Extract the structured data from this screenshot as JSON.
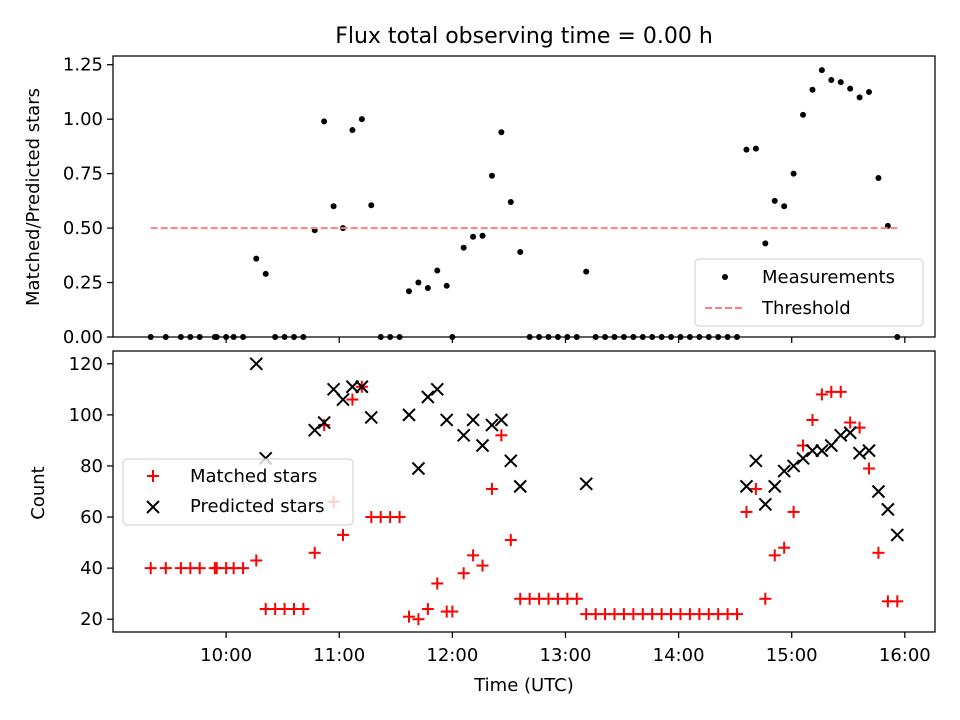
{
  "figure": {
    "title": "Flux total observing time = 0.00 h",
    "xlabel": "Time (UTC)"
  },
  "chart_data": [
    {
      "type": "scatter",
      "ylabel": "Matched/Predicted stars",
      "ylim": [
        0,
        1.29
      ],
      "yticks": [
        0.0,
        0.25,
        0.5,
        0.75,
        1.0,
        1.25
      ],
      "ytick_labels": [
        "0.00",
        "0.25",
        "0.50",
        "0.75",
        "1.00",
        "1.25"
      ],
      "xlim": [
        "09:00",
        "16:16"
      ],
      "xticks": [
        "10:00",
        "11:00",
        "12:00",
        "13:00",
        "14:00",
        "15:00",
        "16:00"
      ],
      "grid": false,
      "legend": {
        "placement": "lower right",
        "entries": [
          "Measurements",
          "Threshold"
        ]
      },
      "series": [
        {
          "name": "Measurements",
          "marker": "dot",
          "color": "#000000",
          "points": [
            [
              "09:20",
              0
            ],
            [
              "09:28",
              0
            ],
            [
              "09:36",
              0
            ],
            [
              "09:41",
              0
            ],
            [
              "09:46",
              0
            ],
            [
              "09:54",
              0
            ],
            [
              "09:55",
              0
            ],
            [
              "10:00",
              0
            ],
            [
              "10:04",
              0
            ],
            [
              "10:09",
              0
            ],
            [
              "10:16",
              0.36
            ],
            [
              "10:21",
              0.29
            ],
            [
              "10:26",
              0
            ],
            [
              "10:31",
              0
            ],
            [
              "10:36",
              0
            ],
            [
              "10:41",
              0
            ],
            [
              "10:47",
              0.49
            ],
            [
              "10:52",
              0.99
            ],
            [
              "10:57",
              0.6
            ],
            [
              "11:02",
              0.5
            ],
            [
              "11:07",
              0.95
            ],
            [
              "11:12",
              1.0
            ],
            [
              "11:17",
              0.605
            ],
            [
              "11:22",
              0
            ],
            [
              "11:27",
              0
            ],
            [
              "11:32",
              0
            ],
            [
              "11:37",
              0.21
            ],
            [
              "11:42",
              0.25
            ],
            [
              "11:47",
              0.225
            ],
            [
              "11:52",
              0.305
            ],
            [
              "11:57",
              0.235
            ],
            [
              "12:00",
              0
            ],
            [
              "12:06",
              0.41
            ],
            [
              "12:11",
              0.46
            ],
            [
              "12:16",
              0.465
            ],
            [
              "12:21",
              0.74
            ],
            [
              "12:26",
              0.94
            ],
            [
              "12:31",
              0.62
            ],
            [
              "12:36",
              0.39
            ],
            [
              "12:41",
              0
            ],
            [
              "12:46",
              0
            ],
            [
              "12:51",
              0
            ],
            [
              "12:56",
              0
            ],
            [
              "13:01",
              0
            ],
            [
              "13:06",
              0
            ],
            [
              "13:11",
              0.3
            ],
            [
              "13:16",
              0
            ],
            [
              "13:21",
              0
            ],
            [
              "13:26",
              0
            ],
            [
              "13:31",
              0
            ],
            [
              "13:36",
              0
            ],
            [
              "13:41",
              0
            ],
            [
              "13:46",
              0
            ],
            [
              "13:51",
              0
            ],
            [
              "13:56",
              0
            ],
            [
              "14:01",
              0
            ],
            [
              "14:06",
              0
            ],
            [
              "14:11",
              0
            ],
            [
              "14:16",
              0
            ],
            [
              "14:21",
              0
            ],
            [
              "14:26",
              0
            ],
            [
              "14:31",
              0
            ],
            [
              "14:36",
              0.86
            ],
            [
              "14:41",
              0.865
            ],
            [
              "14:46",
              0.43
            ],
            [
              "14:51",
              0.625
            ],
            [
              "14:56",
              0.6
            ],
            [
              "15:01",
              0.75
            ],
            [
              "15:06",
              1.02
            ],
            [
              "15:11",
              1.135
            ],
            [
              "15:16",
              1.225
            ],
            [
              "15:21",
              1.18
            ],
            [
              "15:26",
              1.17
            ],
            [
              "15:31",
              1.14
            ],
            [
              "15:36",
              1.1
            ],
            [
              "15:41",
              1.125
            ],
            [
              "15:46",
              0.73
            ],
            [
              "15:51",
              0.51
            ],
            [
              "15:56",
              0
            ]
          ]
        },
        {
          "name": "Threshold",
          "marker": "dashed-line",
          "color": "#ff7f7f",
          "points": [
            [
              "09:20",
              0.5
            ],
            [
              "15:56",
              0.5
            ]
          ]
        }
      ]
    },
    {
      "type": "scatter",
      "ylabel": "Count",
      "ylim": [
        15,
        125
      ],
      "yticks": [
        20,
        40,
        60,
        80,
        100,
        120
      ],
      "ytick_labels": [
        "20",
        "40",
        "60",
        "80",
        "100",
        "120"
      ],
      "xlim": [
        "09:00",
        "16:16"
      ],
      "xticks": [
        "10:00",
        "11:00",
        "12:00",
        "13:00",
        "14:00",
        "15:00",
        "16:00"
      ],
      "xtick_labels": [
        "10:00",
        "11:00",
        "12:00",
        "13:00",
        "14:00",
        "15:00",
        "16:00"
      ],
      "grid": false,
      "legend": {
        "placement": "center left",
        "entries": [
          "Matched stars",
          "Predicted stars"
        ]
      },
      "series": [
        {
          "name": "Matched stars",
          "marker": "plus",
          "color": "#ff0000",
          "points": [
            [
              "09:20",
              40
            ],
            [
              "09:28",
              40
            ],
            [
              "09:36",
              40
            ],
            [
              "09:41",
              40
            ],
            [
              "09:46",
              40
            ],
            [
              "09:54",
              40
            ],
            [
              "09:55",
              40
            ],
            [
              "10:00",
              40
            ],
            [
              "10:04",
              40
            ],
            [
              "10:09",
              40
            ],
            [
              "10:16",
              43
            ],
            [
              "10:21",
              24
            ],
            [
              "10:26",
              24
            ],
            [
              "10:31",
              24
            ],
            [
              "10:36",
              24
            ],
            [
              "10:41",
              24
            ],
            [
              "10:47",
              46
            ],
            [
              "10:52",
              96
            ],
            [
              "10:57",
              66
            ],
            [
              "11:02",
              53
            ],
            [
              "11:07",
              106
            ],
            [
              "11:12",
              111
            ],
            [
              "11:17",
              60
            ],
            [
              "11:22",
              60
            ],
            [
              "11:27",
              60
            ],
            [
              "11:32",
              60
            ],
            [
              "11:37",
              21
            ],
            [
              "11:42",
              20
            ],
            [
              "11:47",
              24
            ],
            [
              "11:52",
              34
            ],
            [
              "11:57",
              23
            ],
            [
              "12:00",
              23
            ],
            [
              "12:06",
              38
            ],
            [
              "12:11",
              45
            ],
            [
              "12:16",
              41
            ],
            [
              "12:21",
              71
            ],
            [
              "12:26",
              92
            ],
            [
              "12:31",
              51
            ],
            [
              "12:36",
              28
            ],
            [
              "12:41",
              28
            ],
            [
              "12:46",
              28
            ],
            [
              "12:51",
              28
            ],
            [
              "12:56",
              28
            ],
            [
              "13:01",
              28
            ],
            [
              "13:06",
              28
            ],
            [
              "13:11",
              22
            ],
            [
              "13:16",
              22
            ],
            [
              "13:21",
              22
            ],
            [
              "13:26",
              22
            ],
            [
              "13:31",
              22
            ],
            [
              "13:36",
              22
            ],
            [
              "13:41",
              22
            ],
            [
              "13:46",
              22
            ],
            [
              "13:51",
              22
            ],
            [
              "13:56",
              22
            ],
            [
              "14:01",
              22
            ],
            [
              "14:06",
              22
            ],
            [
              "14:11",
              22
            ],
            [
              "14:16",
              22
            ],
            [
              "14:21",
              22
            ],
            [
              "14:26",
              22
            ],
            [
              "14:31",
              22
            ],
            [
              "14:36",
              62
            ],
            [
              "14:41",
              71
            ],
            [
              "14:46",
              28
            ],
            [
              "14:51",
              45
            ],
            [
              "14:56",
              48
            ],
            [
              "15:01",
              62
            ],
            [
              "15:06",
              88
            ],
            [
              "15:11",
              98
            ],
            [
              "15:16",
              108
            ],
            [
              "15:21",
              109
            ],
            [
              "15:26",
              109
            ],
            [
              "15:31",
              97
            ],
            [
              "15:36",
              95
            ],
            [
              "15:41",
              79
            ],
            [
              "15:46",
              46
            ],
            [
              "15:51",
              27
            ],
            [
              "15:56",
              27
            ]
          ]
        },
        {
          "name": "Predicted stars",
          "marker": "x",
          "color": "#000000",
          "points": [
            [
              "10:16",
              120
            ],
            [
              "10:21",
              83
            ],
            [
              "10:47",
              94
            ],
            [
              "10:52",
              97
            ],
            [
              "10:57",
              110
            ],
            [
              "11:02",
              106
            ],
            [
              "11:07",
              111
            ],
            [
              "11:12",
              111
            ],
            [
              "11:17",
              99
            ],
            [
              "11:37",
              100
            ],
            [
              "11:42",
              79
            ],
            [
              "11:47",
              107
            ],
            [
              "11:52",
              110
            ],
            [
              "11:57",
              98
            ],
            [
              "12:06",
              92
            ],
            [
              "12:11",
              98
            ],
            [
              "12:16",
              88
            ],
            [
              "12:21",
              96
            ],
            [
              "12:26",
              98
            ],
            [
              "12:31",
              82
            ],
            [
              "12:36",
              72
            ],
            [
              "13:11",
              73
            ],
            [
              "14:36",
              72
            ],
            [
              "14:41",
              82
            ],
            [
              "14:46",
              65
            ],
            [
              "14:51",
              72
            ],
            [
              "14:56",
              78
            ],
            [
              "15:01",
              80
            ],
            [
              "15:06",
              83
            ],
            [
              "15:11",
              86
            ],
            [
              "15:16",
              86
            ],
            [
              "15:21",
              88
            ],
            [
              "15:26",
              92
            ],
            [
              "15:31",
              93
            ],
            [
              "15:36",
              85
            ],
            [
              "15:41",
              86
            ],
            [
              "15:46",
              70
            ],
            [
              "15:51",
              63
            ],
            [
              "15:56",
              53
            ]
          ]
        }
      ]
    }
  ]
}
